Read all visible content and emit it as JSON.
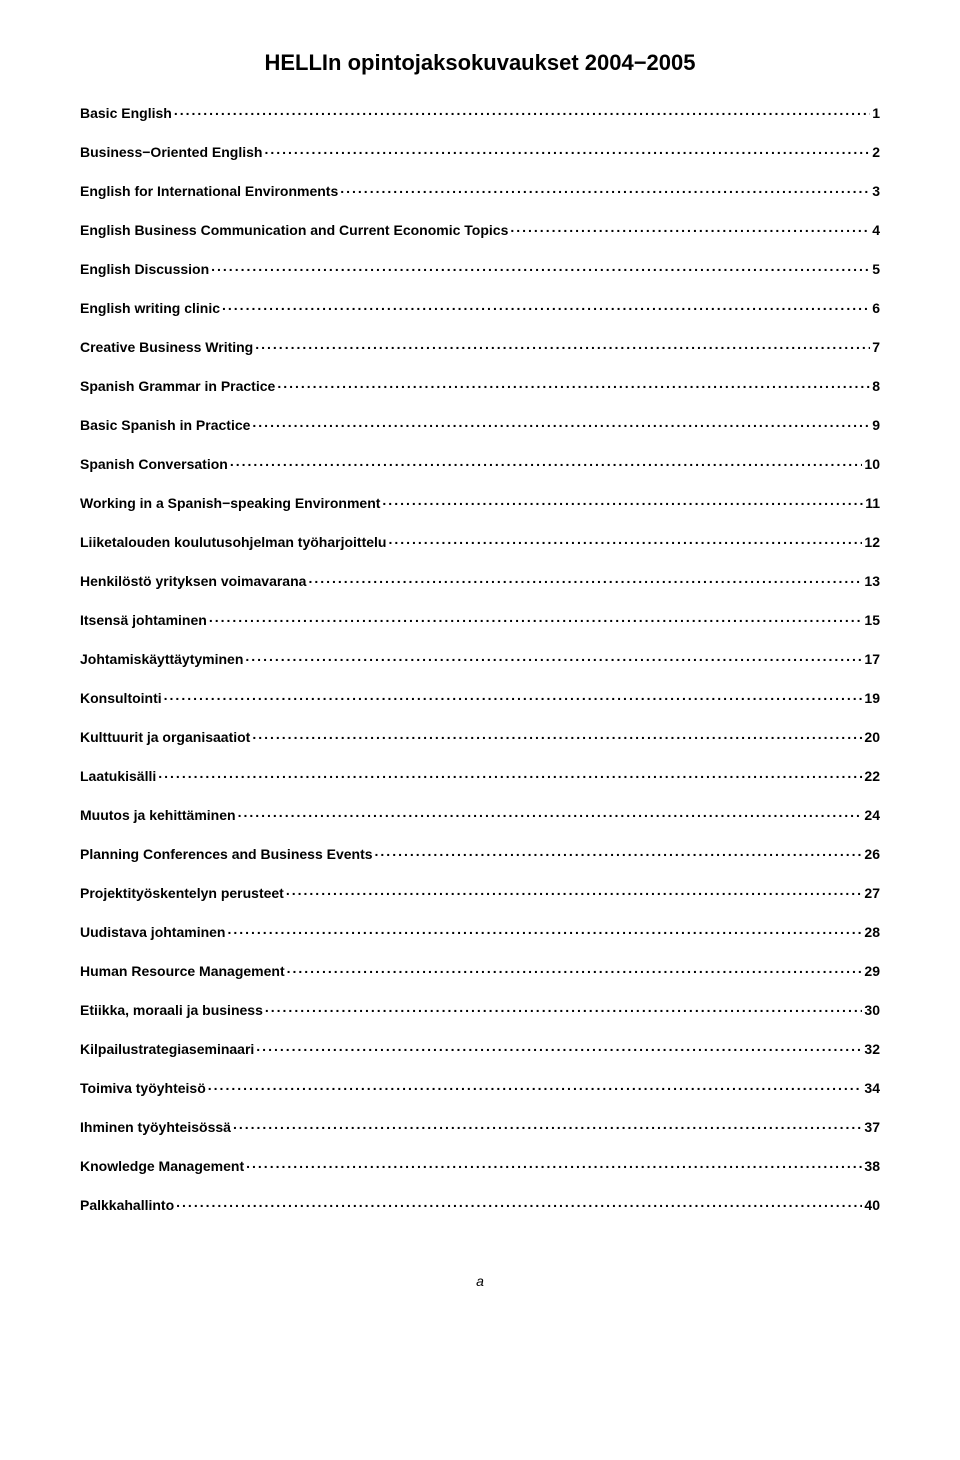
{
  "doc": {
    "title": "HELLIn opintojaksokuvaukset 2004−2005",
    "footer": "a",
    "background_color": "#ffffff",
    "text_color": "#000000",
    "title_fontsize": 22,
    "entry_fontsize": 14,
    "entry_fontweight": "bold",
    "entries": [
      {
        "label": "Basic English",
        "page": "1"
      },
      {
        "label": "Business−Oriented English",
        "page": "2"
      },
      {
        "label": "English for International Environments",
        "page": "3"
      },
      {
        "label": "English Business Communication and Current Economic Topics",
        "page": "4"
      },
      {
        "label": "English Discussion",
        "page": "5"
      },
      {
        "label": "English writing clinic",
        "page": "6"
      },
      {
        "label": "Creative Business Writing",
        "page": "7"
      },
      {
        "label": "Spanish Grammar in Practice",
        "page": "8"
      },
      {
        "label": "Basic Spanish in Practice",
        "page": "9"
      },
      {
        "label": "Spanish Conversation",
        "page": "10"
      },
      {
        "label": "Working in a Spanish−speaking Environment",
        "page": "11"
      },
      {
        "label": "Liiketalouden koulutusohjelman työharjoittelu",
        "page": "12"
      },
      {
        "label": "Henkilöstö yrityksen voimavarana",
        "page": "13"
      },
      {
        "label": "Itsensä johtaminen",
        "page": "15"
      },
      {
        "label": "Johtamiskäyttäytyminen",
        "page": "17"
      },
      {
        "label": "Konsultointi",
        "page": "19"
      },
      {
        "label": "Kulttuurit ja organisaatiot",
        "page": "20"
      },
      {
        "label": "Laatukisälli",
        "page": "22"
      },
      {
        "label": "Muutos ja kehittäminen",
        "page": "24"
      },
      {
        "label": "Planning Conferences and Business Events",
        "page": "26"
      },
      {
        "label": "Projektityöskentelyn perusteet",
        "page": "27"
      },
      {
        "label": "Uudistava johtaminen",
        "page": "28"
      },
      {
        "label": "Human Resource Management",
        "page": "29"
      },
      {
        "label": "Etiikka, moraali ja business",
        "page": "30"
      },
      {
        "label": "Kilpailustrategiaseminaari",
        "page": "32"
      },
      {
        "label": "Toimiva työyhteisö",
        "page": "34"
      },
      {
        "label": "Ihminen työyhteisössä",
        "page": "37"
      },
      {
        "label": "Knowledge Management",
        "page": "38"
      },
      {
        "label": "Palkkahallinto",
        "page": "40"
      }
    ]
  }
}
